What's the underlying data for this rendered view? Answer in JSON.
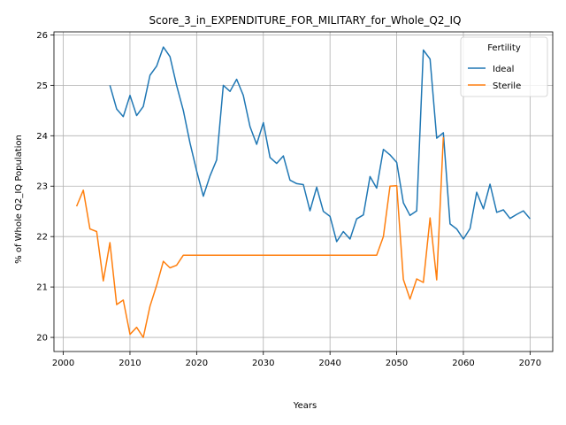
{
  "chart_data": {
    "type": "line",
    "title": "Score_3_in_EXPENDITURE_FOR_MILITARY_for_Whole_Q2_IQ",
    "xlabel": "Years",
    "ylabel": "% of Whole Q2_IQ Population",
    "xlim": [
      1998.6,
      2073.4
    ],
    "ylim": [
      19.72,
      26.06
    ],
    "xticks": [
      2000,
      2010,
      2020,
      2030,
      2040,
      2050,
      2060,
      2070
    ],
    "yticks": [
      20,
      21,
      22,
      23,
      24,
      25,
      26
    ],
    "grid": true,
    "legend": {
      "title": "Fertility",
      "placement": "top-right"
    },
    "series": [
      {
        "name": "Ideal",
        "color": "#1f77b4",
        "points": [
          [
            2007,
            25.0
          ],
          [
            2008,
            24.53
          ],
          [
            2009,
            24.38
          ],
          [
            2010,
            24.8
          ],
          [
            2011,
            24.4
          ],
          [
            2012,
            24.58
          ],
          [
            2013,
            25.2
          ],
          [
            2014,
            25.38
          ],
          [
            2015,
            25.76
          ],
          [
            2016,
            25.57
          ],
          [
            2017,
            25.0
          ],
          [
            2018,
            24.5
          ],
          [
            2019,
            23.86
          ],
          [
            2020,
            23.3
          ],
          [
            2021,
            22.8
          ],
          [
            2022,
            23.2
          ],
          [
            2023,
            23.52
          ],
          [
            2024,
            25.0
          ],
          [
            2025,
            24.88
          ],
          [
            2026,
            25.12
          ],
          [
            2027,
            24.8
          ],
          [
            2028,
            24.18
          ],
          [
            2029,
            23.83
          ],
          [
            2030,
            24.26
          ],
          [
            2031,
            23.57
          ],
          [
            2032,
            23.45
          ],
          [
            2033,
            23.6
          ],
          [
            2034,
            23.12
          ],
          [
            2035,
            23.05
          ],
          [
            2036,
            23.03
          ],
          [
            2037,
            22.51
          ],
          [
            2038,
            22.98
          ],
          [
            2039,
            22.5
          ],
          [
            2040,
            22.4
          ],
          [
            2041,
            21.9
          ],
          [
            2042,
            22.1
          ],
          [
            2043,
            21.95
          ],
          [
            2044,
            22.35
          ],
          [
            2045,
            22.43
          ],
          [
            2046,
            23.19
          ],
          [
            2047,
            22.96
          ],
          [
            2048,
            23.73
          ],
          [
            2049,
            23.62
          ],
          [
            2050,
            23.47
          ],
          [
            2051,
            22.67
          ],
          [
            2052,
            22.42
          ],
          [
            2053,
            22.51
          ],
          [
            2054,
            25.7
          ],
          [
            2055,
            25.52
          ],
          [
            2056,
            23.95
          ],
          [
            2057,
            24.06
          ],
          [
            2058,
            22.25
          ],
          [
            2059,
            22.15
          ],
          [
            2060,
            21.95
          ],
          [
            2061,
            22.16
          ],
          [
            2062,
            22.88
          ],
          [
            2063,
            22.55
          ],
          [
            2064,
            23.04
          ],
          [
            2065,
            22.48
          ],
          [
            2066,
            22.53
          ],
          [
            2067,
            22.36
          ],
          [
            2068,
            22.44
          ],
          [
            2069,
            22.51
          ],
          [
            2070,
            22.35
          ]
        ]
      },
      {
        "name": "Sterile",
        "color": "#ff7f0e",
        "points": [
          [
            2002,
            22.6
          ],
          [
            2003,
            22.92
          ],
          [
            2004,
            22.15
          ],
          [
            2005,
            22.1
          ],
          [
            2006,
            21.12
          ],
          [
            2007,
            21.88
          ],
          [
            2008,
            20.65
          ],
          [
            2009,
            20.74
          ],
          [
            2010,
            20.06
          ],
          [
            2011,
            20.2
          ],
          [
            2012,
            20.0
          ],
          [
            2013,
            20.62
          ],
          [
            2014,
            21.03
          ],
          [
            2015,
            21.51
          ],
          [
            2016,
            21.38
          ],
          [
            2017,
            21.43
          ],
          [
            2018,
            21.63
          ],
          [
            2019,
            21.63
          ],
          [
            2020,
            21.63
          ],
          [
            2021,
            21.63
          ],
          [
            2022,
            21.63
          ],
          [
            2023,
            21.63
          ],
          [
            2024,
            21.63
          ],
          [
            2025,
            21.63
          ],
          [
            2026,
            21.63
          ],
          [
            2027,
            21.63
          ],
          [
            2028,
            21.63
          ],
          [
            2029,
            21.63
          ],
          [
            2030,
            21.63
          ],
          [
            2031,
            21.63
          ],
          [
            2032,
            21.63
          ],
          [
            2033,
            21.63
          ],
          [
            2034,
            21.63
          ],
          [
            2035,
            21.63
          ],
          [
            2036,
            21.63
          ],
          [
            2037,
            21.63
          ],
          [
            2038,
            21.63
          ],
          [
            2039,
            21.63
          ],
          [
            2040,
            21.63
          ],
          [
            2041,
            21.63
          ],
          [
            2042,
            21.63
          ],
          [
            2043,
            21.63
          ],
          [
            2044,
            21.63
          ],
          [
            2045,
            21.63
          ],
          [
            2046,
            21.63
          ],
          [
            2047,
            21.63
          ],
          [
            2048,
            22.0
          ],
          [
            2049,
            23.0
          ],
          [
            2050,
            23.01
          ],
          [
            2051,
            21.15
          ],
          [
            2052,
            20.76
          ],
          [
            2053,
            21.16
          ],
          [
            2054,
            21.09
          ],
          [
            2055,
            22.37
          ],
          [
            2056,
            21.14
          ],
          [
            2057,
            23.97
          ]
        ]
      }
    ]
  }
}
